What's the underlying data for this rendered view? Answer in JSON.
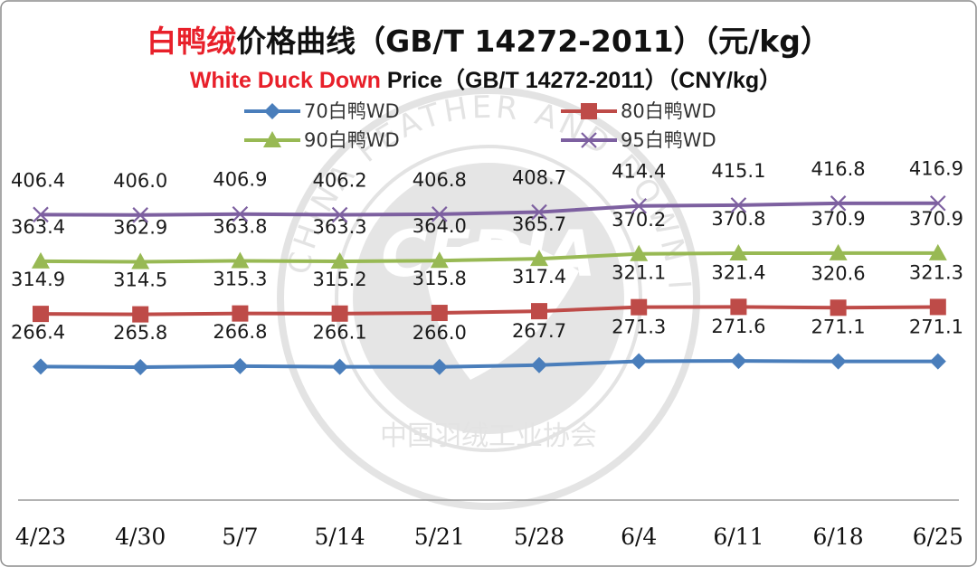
{
  "chart_data": {
    "type": "line",
    "title_cn_red": "白鸭绒",
    "title_cn_rest": "价格曲线（GB/T 14272-2011）（元/kg）",
    "title_en_red": "White Duck Down",
    "title_en_rest": " Price（GB/T 14272-2011）（CNY/kg）",
    "categories": [
      "4/23",
      "4/30",
      "5/7",
      "5/14",
      "5/21",
      "5/28",
      "6/4",
      "6/11",
      "6/18",
      "6/25"
    ],
    "series": [
      {
        "name": "70白鸭WD",
        "color": "#4a7ebb",
        "marker": "diamond",
        "values": [
          266.4,
          265.8,
          266.8,
          266.1,
          266.0,
          267.7,
          271.3,
          271.6,
          271.1,
          271.1
        ]
      },
      {
        "name": "80白鸭WD",
        "color": "#be4b48",
        "marker": "square",
        "values": [
          314.9,
          314.5,
          315.3,
          315.2,
          315.8,
          317.4,
          321.1,
          321.4,
          320.6,
          321.3
        ]
      },
      {
        "name": "90白鸭WD",
        "color": "#98b954",
        "marker": "triangle",
        "values": [
          363.4,
          362.9,
          363.8,
          363.3,
          364.0,
          365.7,
          370.2,
          370.8,
          370.9,
          370.9
        ]
      },
      {
        "name": "95白鸭WD",
        "color": "#7d60a0",
        "marker": "x",
        "values": [
          406.4,
          406.0,
          406.9,
          406.2,
          406.8,
          408.7,
          414.4,
          415.1,
          416.8,
          416.9
        ]
      }
    ],
    "ylim": [
      135,
      460
    ],
    "grid": false,
    "legend_position": "top",
    "watermark": {
      "logo": "CFDIA",
      "ring_text_en": "CHINA FEATHER AND DOWN INDUSTRIAL ASSOCIATION",
      "ring_text_cn": "中国羽绒工业协会"
    }
  },
  "colors": {
    "title_red": "#e8202a",
    "title_black": "#111111",
    "axis": "#9a9a9a",
    "border": "#8c8c8c"
  }
}
